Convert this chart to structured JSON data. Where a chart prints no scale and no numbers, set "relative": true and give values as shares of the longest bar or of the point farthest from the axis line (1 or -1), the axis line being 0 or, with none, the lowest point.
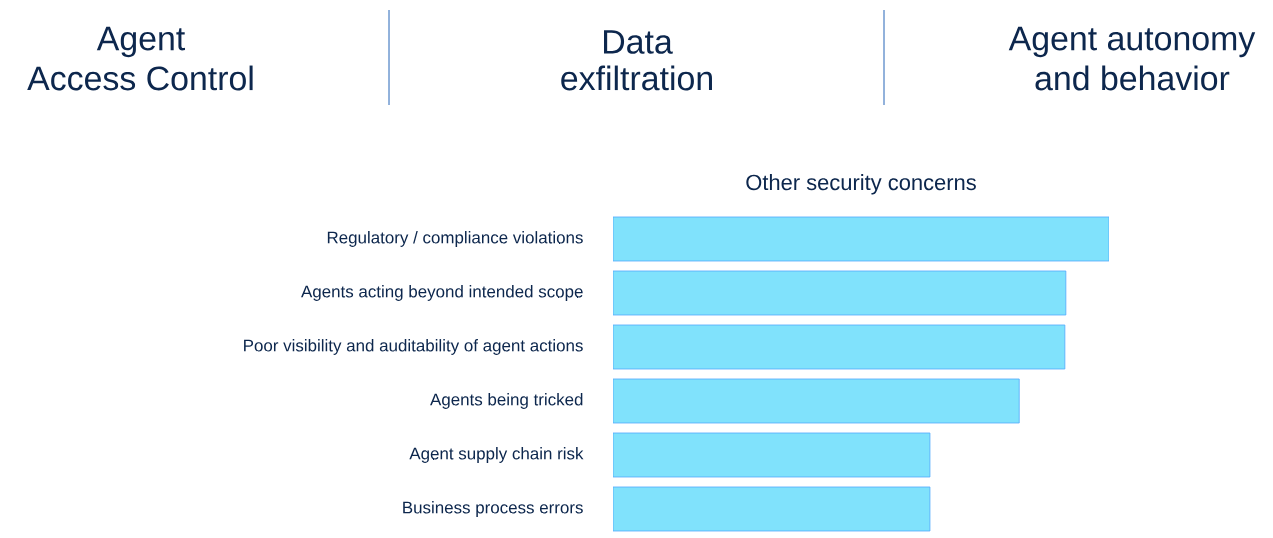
{
  "chart_data": {
    "type": "bar",
    "orientation": "horizontal",
    "relative": true,
    "title": "Other security concerns",
    "categories": [
      "Regulatory / compliance violations",
      "Agents acting beyond intended scope",
      "Poor visibility and auditability of agent actions",
      "Agents being tricked",
      "Agent supply chain risk",
      "Business process errors"
    ],
    "values": [
      1,
      0.913,
      0.911,
      0.819,
      0.639,
      0.639
    ],
    "color": "#80e2fc",
    "annotations": [
      "Agent",
      "Access Control",
      "Data",
      "exfiltration",
      "Agent autonomy",
      "and behavior"
    ]
  }
}
